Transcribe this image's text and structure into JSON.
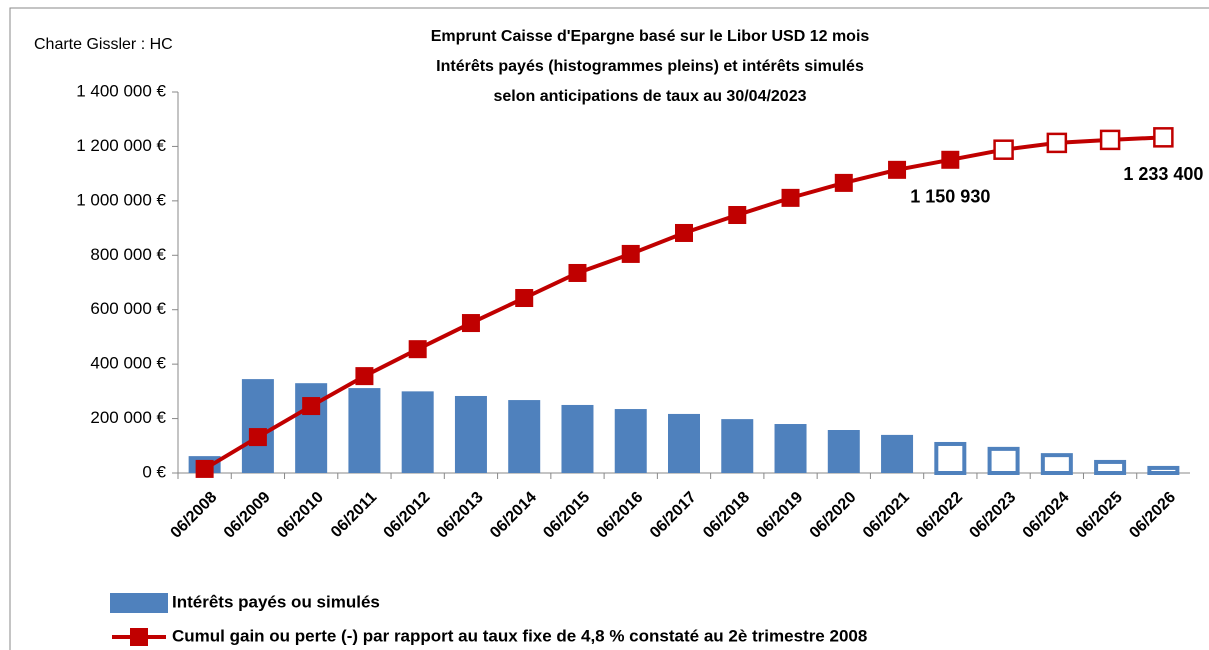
{
  "chart_data": {
    "type": "bar-line",
    "title": [
      "Emprunt Caisse d'Epargne basé sur le Libor USD 12 mois",
      "Intérêts payés (histogrammes pleins) et intérêts simulés",
      "selon anticipations de taux au 30/04/2023"
    ],
    "annotation": "Charte Gissler : HC",
    "categories": [
      "06/2008",
      "06/2009",
      "06/2010",
      "06/2011",
      "06/2012",
      "06/2013",
      "06/2014",
      "06/2015",
      "06/2016",
      "06/2017",
      "06/2018",
      "06/2019",
      "06/2020",
      "06/2021",
      "06/2022",
      "06/2023",
      "06/2024",
      "06/2025",
      "06/2026"
    ],
    "series": [
      {
        "name": "Intérêts payés ou simulés",
        "type": "bar",
        "color": "#4f81bd",
        "values": [
          62000,
          345000,
          330000,
          312000,
          300000,
          283000,
          268000,
          250000,
          235000,
          217000,
          198000,
          180000,
          158000,
          140000,
          114000,
          96000,
          73000,
          48000,
          26000
        ],
        "filled": [
          true,
          true,
          true,
          true,
          true,
          true,
          true,
          true,
          true,
          true,
          true,
          true,
          true,
          true,
          false,
          false,
          false,
          false,
          false
        ]
      },
      {
        "name": "Cumul gain ou perte (-) par rapport au taux fixe de 4,8 % constaté au 2è trimestre 2008",
        "type": "line",
        "color": "#c00000",
        "values": [
          15000,
          132000,
          246000,
          356000,
          455000,
          551000,
          643000,
          735000,
          805000,
          882000,
          948000,
          1011000,
          1066000,
          1114000,
          1150930,
          1188000,
          1213000,
          1224000,
          1233400
        ],
        "value_labels": [
          null,
          null,
          null,
          null,
          null,
          null,
          null,
          null,
          null,
          null,
          null,
          null,
          null,
          null,
          "1 150 930",
          null,
          null,
          null,
          "1 233 400"
        ],
        "filled": [
          true,
          true,
          true,
          true,
          true,
          true,
          true,
          true,
          true,
          true,
          true,
          true,
          true,
          true,
          true,
          false,
          false,
          false,
          false
        ]
      }
    ],
    "ylim": [
      0,
      1400000
    ],
    "yticks": [
      {
        "value": 0,
        "label": "0 €"
      },
      {
        "value": 200000,
        "label": "200 000 €"
      },
      {
        "value": 400000,
        "label": "400 000 €"
      },
      {
        "value": 600000,
        "label": "600 000 €"
      },
      {
        "value": 800000,
        "label": "800 000 €"
      },
      {
        "value": 1000000,
        "label": "1 000 000 €"
      },
      {
        "value": 1200000,
        "label": "1 200 000 €"
      },
      {
        "value": 1400000,
        "label": "1 400 000 €"
      }
    ],
    "legend": "bottom-left",
    "grid": false
  }
}
